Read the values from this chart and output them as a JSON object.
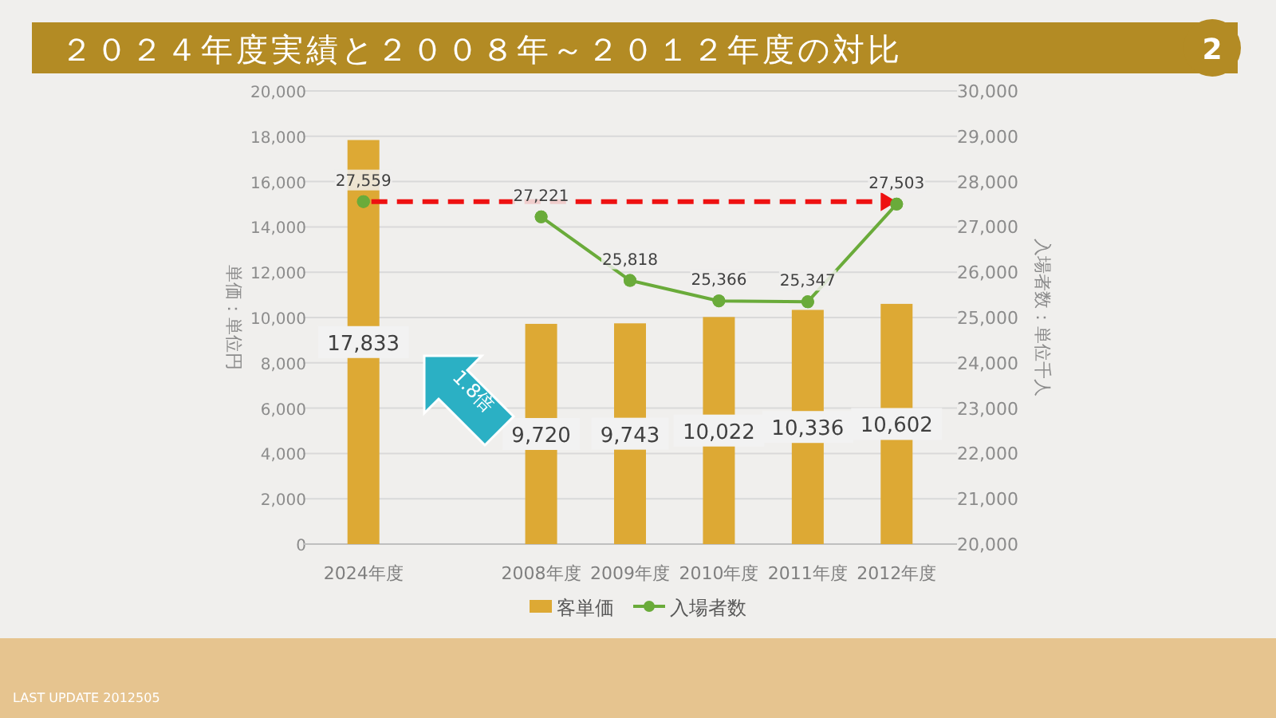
{
  "chart_data": {
    "type": "bar",
    "title": "２０２４年度実績と２００８年～２０１２年度の対比",
    "categories": [
      "2024年度",
      null,
      "2008年度",
      "2009年度",
      "2010年度",
      "2011年度",
      "2012年度"
    ],
    "series": [
      {
        "name": "客単価",
        "color": "#dda934",
        "values": [
          17833,
          null,
          9720,
          9743,
          10022,
          10336,
          10602
        ],
        "value_labels": [
          "17,833",
          null,
          "9,720",
          "9,743",
          "10,022",
          "10,336",
          "10,602"
        ]
      },
      {
        "name": "入場者数",
        "type": "line",
        "axis": "y2",
        "color": "#6aab3a",
        "marker": "circle",
        "values": [
          27559,
          null,
          27221,
          25818,
          25366,
          25347,
          27503
        ],
        "value_labels": [
          "27,559",
          null,
          "27,221",
          "25,818",
          "25,366",
          "25,347",
          "27,503"
        ]
      }
    ],
    "ylabel": "単価：単位円",
    "y2label": "入場者数：単位千人",
    "ylim": [
      0,
      20000
    ],
    "yticks": [
      {
        "value": 0,
        "label": "0"
      },
      {
        "value": 2000,
        "label": "2,000"
      },
      {
        "value": 4000,
        "label": "4,000"
      },
      {
        "value": 6000,
        "label": "6,000"
      },
      {
        "value": 8000,
        "label": "8,000"
      },
      {
        "value": 10000,
        "label": "10,000"
      },
      {
        "value": 12000,
        "label": "12,000"
      },
      {
        "value": 14000,
        "label": "14,000"
      },
      {
        "value": 16000,
        "label": "16,000"
      },
      {
        "value": 18000,
        "label": "18,000"
      },
      {
        "value": 20000,
        "label": "20,000"
      }
    ],
    "y2lim": [
      20000,
      30000
    ],
    "y2ticks": [
      {
        "value": 20000,
        "label": "20,000"
      },
      {
        "value": 21000,
        "label": "21,000"
      },
      {
        "value": 22000,
        "label": "22,000"
      },
      {
        "value": 23000,
        "label": "23,000"
      },
      {
        "value": 24000,
        "label": "24,000"
      },
      {
        "value": 25000,
        "label": "25,000"
      },
      {
        "value": 26000,
        "label": "26,000"
      },
      {
        "value": 27000,
        "label": "27,000"
      },
      {
        "value": 28000,
        "label": "28,000"
      },
      {
        "value": 29000,
        "label": "29,000"
      },
      {
        "value": 30000,
        "label": "30,000"
      }
    ],
    "ref_lines": [
      {
        "axis": "y2",
        "value": 27559,
        "color": "#ee1111",
        "line_style": "dashed"
      }
    ],
    "grid": "y",
    "legend": "bottom",
    "annotations": [
      "1.8倍",
      "2",
      "LAST UPDATE 2012505"
    ]
  }
}
